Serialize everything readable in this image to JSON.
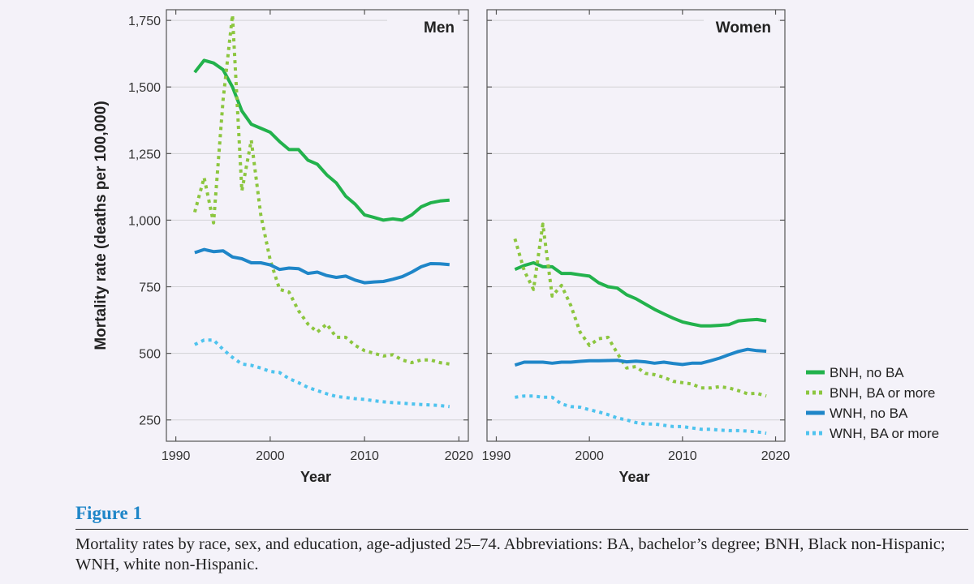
{
  "chart_data": {
    "type": "line",
    "ylabel": "Mortality rate (deaths per 100,000)",
    "xlabel": "Year",
    "xlim": [
      1989,
      2021
    ],
    "ylim": [
      170,
      1790
    ],
    "x_ticks": [
      1990,
      2000,
      2010,
      2020
    ],
    "x_tick_labels": [
      "1990",
      "2000",
      "2010",
      "2020"
    ],
    "y_ticks": [
      250,
      500,
      750,
      1000,
      1250,
      1500,
      1750
    ],
    "y_tick_labels": [
      "250",
      "500",
      "750",
      "1,000",
      "1,250",
      "1,500",
      "1,750"
    ],
    "grid": "horizontal",
    "legend_position": "right",
    "panels": [
      {
        "title": "Men",
        "series": [
          {
            "name": "BNH, no BA",
            "color": "#22b24c",
            "style": "solid",
            "x": [
              1992,
              1993,
              1994,
              1995,
              1996,
              1997,
              1998,
              1999,
              2000,
              2001,
              2002,
              2003,
              2004,
              2005,
              2006,
              2007,
              2008,
              2009,
              2010,
              2011,
              2012,
              2013,
              2014,
              2015,
              2016,
              2017,
              2018,
              2019
            ],
            "y": [
              1555,
              1600,
              1590,
              1565,
              1500,
              1410,
              1360,
              1345,
              1330,
              1295,
              1265,
              1265,
              1225,
              1210,
              1170,
              1140,
              1090,
              1060,
              1020,
              1010,
              1000,
              1005,
              1000,
              1020,
              1050,
              1065,
              1072,
              1075
            ]
          },
          {
            "name": "BNH, BA or more",
            "color": "#8cc63f",
            "style": "dotted",
            "x": [
              1992,
              1993,
              1994,
              1995,
              1996,
              1997,
              1998,
              1999,
              2000,
              2001,
              2002,
              2003,
              2004,
              2005,
              2006,
              2007,
              2008,
              2009,
              2010,
              2011,
              2012,
              2013,
              2014,
              2015,
              2016,
              2017,
              2018,
              2019
            ],
            "y": [
              1030,
              1160,
              990,
              1450,
              1770,
              1110,
              1300,
              1020,
              850,
              740,
              730,
              660,
              610,
              580,
              610,
              560,
              560,
              530,
              510,
              500,
              490,
              495,
              475,
              465,
              475,
              475,
              465,
              460
            ]
          },
          {
            "name": "WNH, no BA",
            "color": "#1f86c8",
            "style": "solid",
            "x": [
              1992,
              1993,
              1994,
              1995,
              1996,
              1997,
              1998,
              1999,
              2000,
              2001,
              2002,
              2003,
              2004,
              2005,
              2006,
              2007,
              2008,
              2009,
              2010,
              2011,
              2012,
              2013,
              2014,
              2015,
              2016,
              2017,
              2018,
              2019
            ],
            "y": [
              878,
              890,
              882,
              885,
              862,
              855,
              840,
              840,
              832,
              815,
              820,
              818,
              800,
              805,
              792,
              785,
              790,
              775,
              765,
              768,
              770,
              778,
              788,
              805,
              825,
              837,
              836,
              833
            ]
          },
          {
            "name": "WNH, BA or more",
            "color": "#4ec3ee",
            "style": "dotted",
            "x": [
              1992,
              1993,
              1994,
              1995,
              1996,
              1997,
              1998,
              1999,
              2000,
              2001,
              2002,
              2003,
              2004,
              2005,
              2006,
              2007,
              2008,
              2009,
              2010,
              2011,
              2012,
              2013,
              2014,
              2015,
              2016,
              2017,
              2018,
              2019
            ],
            "y": [
              533,
              550,
              550,
              515,
              485,
              460,
              455,
              445,
              432,
              428,
              405,
              390,
              372,
              360,
              348,
              338,
              334,
              330,
              327,
              322,
              318,
              315,
              313,
              310,
              308,
              306,
              304,
              300
            ]
          }
        ]
      },
      {
        "title": "Women",
        "series": [
          {
            "name": "BNH, no BA",
            "color": "#22b24c",
            "style": "solid",
            "x": [
              1992,
              1993,
              1994,
              1995,
              1996,
              1997,
              1998,
              1999,
              2000,
              2001,
              2002,
              2003,
              2004,
              2005,
              2006,
              2007,
              2008,
              2009,
              2010,
              2011,
              2012,
              2013,
              2014,
              2015,
              2016,
              2017,
              2018,
              2019
            ],
            "y": [
              815,
              830,
              840,
              825,
              825,
              800,
              800,
              795,
              790,
              765,
              750,
              745,
              720,
              705,
              685,
              665,
              648,
              632,
              618,
              610,
              603,
              603,
              605,
              608,
              622,
              625,
              627,
              622
            ]
          },
          {
            "name": "BNH, BA or more",
            "color": "#8cc63f",
            "style": "dotted",
            "x": [
              1992,
              1993,
              1994,
              1995,
              1996,
              1997,
              1998,
              1999,
              2000,
              2001,
              2002,
              2003,
              2004,
              2005,
              2006,
              2007,
              2008,
              2009,
              2010,
              2011,
              2012,
              2013,
              2014,
              2015,
              2016,
              2017,
              2018,
              2019
            ],
            "y": [
              930,
              810,
              740,
              985,
              715,
              755,
              680,
              580,
              530,
              555,
              560,
              500,
              445,
              450,
              425,
              420,
              410,
              395,
              390,
              385,
              370,
              370,
              375,
              370,
              360,
              348,
              350,
              340
            ]
          },
          {
            "name": "WNH, no BA",
            "color": "#1f86c8",
            "style": "solid",
            "x": [
              1992,
              1993,
              1994,
              1995,
              1996,
              1997,
              1998,
              1999,
              2000,
              2001,
              2002,
              2003,
              2004,
              2005,
              2006,
              2007,
              2008,
              2009,
              2010,
              2011,
              2012,
              2013,
              2014,
              2015,
              2016,
              2017,
              2018,
              2019
            ],
            "y": [
              456,
              467,
              467,
              467,
              463,
              467,
              467,
              470,
              472,
              472,
              473,
              474,
              468,
              471,
              468,
              463,
              467,
              462,
              458,
              463,
              463,
              472,
              482,
              495,
              507,
              515,
              510,
              508
            ]
          },
          {
            "name": "WNH, BA or more",
            "color": "#4ec3ee",
            "style": "dotted",
            "x": [
              1992,
              1993,
              1994,
              1995,
              1996,
              1997,
              1998,
              1999,
              2000,
              2001,
              2002,
              2003,
              2004,
              2005,
              2006,
              2007,
              2008,
              2009,
              2010,
              2011,
              2012,
              2013,
              2014,
              2015,
              2016,
              2017,
              2018,
              2019
            ],
            "y": [
              335,
              340,
              340,
              335,
              335,
              310,
              300,
              298,
              288,
              280,
              270,
              257,
              250,
              240,
              235,
              235,
              230,
              225,
              225,
              220,
              215,
              215,
              212,
              210,
              210,
              208,
              205,
              200
            ]
          }
        ]
      }
    ]
  },
  "figure": {
    "label": "Figure 1",
    "caption": "Mortality rates by race, sex, and education, age-adjusted 25–74. Abbreviations: BA, bachelor’s degree; BNH, Black non-Hispanic; WNH, white non-Hispanic."
  }
}
